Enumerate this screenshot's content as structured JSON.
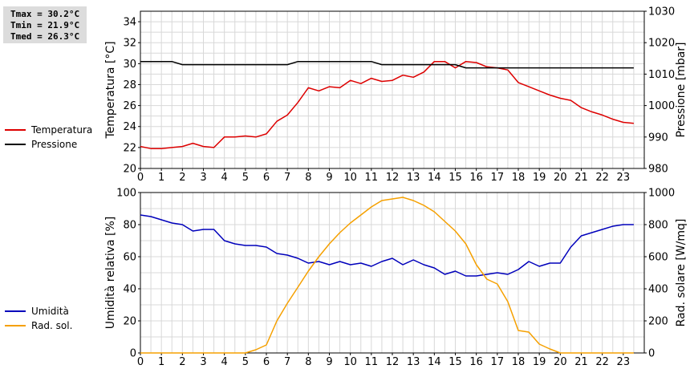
{
  "stats": {
    "tmax": "Tmax = 30.2°C",
    "tmin": "Tmin = 21.9°C",
    "tmed": "Tmed = 26.3°C"
  },
  "legend_top": [
    {
      "label": "Temperatura",
      "color": "#dd0000"
    },
    {
      "label": "Pressione",
      "color": "#000000"
    }
  ],
  "legend_bottom": [
    {
      "label": "Umidità",
      "color": "#0000bb"
    },
    {
      "label": "Rad. sol.",
      "color": "#f5a000"
    }
  ],
  "chart_data": [
    {
      "type": "line",
      "x_ticks": [
        "0",
        "1",
        "2",
        "3",
        "4",
        "5",
        "6",
        "7",
        "8",
        "9",
        "10",
        "11",
        "12",
        "13",
        "14",
        "15",
        "16",
        "17",
        "18",
        "19",
        "20",
        "21",
        "22",
        "23"
      ],
      "xlim": [
        0,
        24
      ],
      "ylabel": "Temperatura [°C]",
      "ylim": [
        20,
        35
      ],
      "y_ticks": [
        "20",
        "22",
        "24",
        "26",
        "28",
        "30",
        "32",
        "34"
      ],
      "y2label": "Pressione [mbar]",
      "y2lim": [
        980,
        1030
      ],
      "y2_ticks": [
        "980",
        "990",
        "1000",
        "1010",
        "1020",
        "1030"
      ],
      "grid": true,
      "series": [
        {
          "name": "Temperatura",
          "axis": "left",
          "color": "#dd0000",
          "x": [
            0,
            0.5,
            1,
            1.5,
            2,
            2.5,
            3,
            3.5,
            4,
            4.5,
            5,
            5.5,
            6,
            6.5,
            7,
            7.5,
            8,
            8.5,
            9,
            9.5,
            10,
            10.5,
            11,
            11.5,
            12,
            12.5,
            13,
            13.5,
            14,
            14.5,
            15,
            15.5,
            16,
            16.5,
            17,
            17.5,
            18,
            18.5,
            19,
            19.5,
            20,
            20.5,
            21,
            21.5,
            22,
            22.5,
            23,
            23.5
          ],
          "y": [
            22.1,
            21.9,
            21.9,
            22.0,
            22.1,
            22.4,
            22.1,
            22.0,
            23.0,
            23.0,
            23.1,
            23.0,
            23.3,
            24.5,
            25.1,
            26.3,
            27.7,
            27.4,
            27.8,
            27.7,
            28.4,
            28.1,
            28.6,
            28.3,
            28.4,
            28.9,
            28.7,
            29.2,
            30.2,
            30.2,
            29.6,
            30.2,
            30.1,
            29.7,
            29.6,
            29.4,
            28.2,
            27.8,
            27.4,
            27.0,
            26.7,
            26.5,
            25.8,
            25.4,
            25.1,
            24.7,
            24.4,
            24.3
          ]
        },
        {
          "name": "Pressione",
          "axis": "right",
          "color": "#000000",
          "x": [
            0,
            0.5,
            1,
            1.5,
            2,
            2.5,
            3,
            3.5,
            4,
            4.5,
            5,
            5.5,
            6,
            6.5,
            7,
            7.5,
            8,
            8.5,
            9,
            9.5,
            10,
            10.5,
            11,
            11.5,
            12,
            12.5,
            13,
            13.5,
            14,
            14.5,
            15,
            15.5,
            16,
            16.5,
            17,
            17.5,
            18,
            18.5,
            19,
            19.5,
            20,
            20.5,
            21,
            21.5,
            22,
            22.5,
            23,
            23.5
          ],
          "y": [
            1014,
            1014,
            1014,
            1014,
            1013,
            1013,
            1013,
            1013,
            1013,
            1013,
            1013,
            1013,
            1013,
            1013,
            1013,
            1014,
            1014,
            1014,
            1014,
            1014,
            1014,
            1014,
            1014,
            1013,
            1013,
            1013,
            1013,
            1013,
            1013,
            1013,
            1013,
            1012,
            1012,
            1012,
            1012,
            1012,
            1012,
            1012,
            1012,
            1012,
            1012,
            1012,
            1012,
            1012,
            1012,
            1012,
            1012,
            1012
          ]
        }
      ]
    },
    {
      "type": "line",
      "x_ticks": [
        "0",
        "1",
        "2",
        "3",
        "4",
        "5",
        "6",
        "7",
        "8",
        "9",
        "10",
        "11",
        "12",
        "13",
        "14",
        "15",
        "16",
        "17",
        "18",
        "19",
        "20",
        "21",
        "22",
        "23"
      ],
      "xlim": [
        0,
        24
      ],
      "ylabel": "Umidità relativa [%]",
      "ylim": [
        0,
        100
      ],
      "y_ticks": [
        "0",
        "20",
        "40",
        "60",
        "80",
        "100"
      ],
      "y2label": "Rad. solare [W/mq]",
      "y2lim": [
        0,
        1000
      ],
      "y2_ticks": [
        "0",
        "200",
        "400",
        "600",
        "800",
        "1000"
      ],
      "grid": true,
      "series": [
        {
          "name": "Umidità",
          "axis": "left",
          "color": "#0000bb",
          "x": [
            0,
            0.5,
            1,
            1.5,
            2,
            2.5,
            3,
            3.5,
            4,
            4.5,
            5,
            5.5,
            6,
            6.5,
            7,
            7.5,
            8,
            8.5,
            9,
            9.5,
            10,
            10.5,
            11,
            11.5,
            12,
            12.5,
            13,
            13.5,
            14,
            14.5,
            15,
            15.5,
            16,
            16.5,
            17,
            17.5,
            18,
            18.5,
            19,
            19.5,
            20,
            20.5,
            21,
            21.5,
            22,
            22.5,
            23,
            23.5
          ],
          "y": [
            86,
            85,
            83,
            81,
            80,
            76,
            77,
            77,
            70,
            68,
            67,
            67,
            66,
            62,
            61,
            59,
            56,
            57,
            55,
            57,
            55,
            56,
            54,
            57,
            59,
            55,
            58,
            55,
            53,
            49,
            51,
            48,
            48,
            49,
            50,
            49,
            52,
            57,
            54,
            56,
            56,
            66,
            73,
            75,
            77,
            79,
            80,
            80
          ]
        },
        {
          "name": "Rad. sol.",
          "axis": "right",
          "color": "#f5a000",
          "x": [
            0,
            0.5,
            1,
            1.5,
            2,
            2.5,
            3,
            3.5,
            4,
            4.5,
            5,
            5.5,
            6,
            6.5,
            7,
            7.5,
            8,
            8.5,
            9,
            9.5,
            10,
            10.5,
            11,
            11.5,
            12,
            12.5,
            13,
            13.5,
            14,
            14.5,
            15,
            15.5,
            16,
            16.5,
            17,
            17.5,
            18,
            18.5,
            19,
            19.5,
            20,
            20.5,
            21,
            21.5,
            22,
            22.5,
            23,
            23.5
          ],
          "y": [
            0,
            0,
            0,
            0,
            0,
            0,
            0,
            0,
            0,
            0,
            0,
            20,
            50,
            200,
            310,
            410,
            510,
            600,
            680,
            750,
            810,
            860,
            910,
            950,
            960,
            970,
            950,
            920,
            880,
            820,
            760,
            680,
            550,
            460,
            430,
            320,
            140,
            130,
            55,
            25,
            0,
            0,
            0,
            0,
            0,
            0,
            0,
            0
          ]
        }
      ]
    }
  ]
}
